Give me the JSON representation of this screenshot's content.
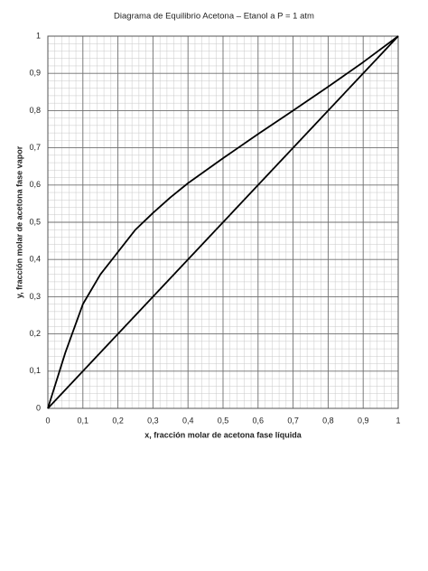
{
  "chart_data": {
    "type": "line",
    "title": "Diagrama de Equilibrio Acetona – Etanol a P = 1 atm",
    "x_label": "x, fracción molar de acetona fase líquida",
    "y_label": "y, fracción molar de acetona fase vapor",
    "xlim": [
      0,
      1
    ],
    "ylim": [
      0,
      1
    ],
    "xticks": [
      0,
      {
        "value": 0.1,
        "label": "0,1"
      },
      {
        "value": 0.2,
        "label": "0,2"
      },
      {
        "value": 0.3,
        "label": "0,3"
      },
      {
        "value": 0.4,
        "label": "0,4"
      },
      {
        "value": 0.5,
        "label": "0,5"
      },
      {
        "value": 0.6,
        "label": "0,6"
      },
      {
        "value": 0.7,
        "label": "0,7"
      },
      {
        "value": 0.8,
        "label": "0,8"
      },
      {
        "value": 0.9,
        "label": "0,9"
      },
      1
    ],
    "yticks": [
      0,
      {
        "value": 0.1,
        "label": "0,1"
      },
      {
        "value": 0.2,
        "label": "0,2"
      },
      {
        "value": 0.3,
        "label": "0,3"
      },
      {
        "value": 0.4,
        "label": "0,4"
      },
      {
        "value": 0.5,
        "label": "0,5"
      },
      {
        "value": 0.6,
        "label": "0,6"
      },
      {
        "value": 0.7,
        "label": "0,7"
      },
      {
        "value": 0.8,
        "label": "0,8"
      },
      {
        "value": 0.9,
        "label": "0,9"
      },
      1
    ],
    "grid": true,
    "series": [
      {
        "color": "#000000",
        "x": [
          0,
          0.05,
          0.1,
          0.15,
          0.2,
          0.25,
          0.3,
          0.35,
          0.4,
          0.5,
          0.6,
          0.7,
          0.8,
          0.9,
          1
        ],
        "values": [
          0,
          0.15,
          0.28,
          0.36,
          0.42,
          0.48,
          0.525,
          0.567,
          0.605,
          0.672,
          0.737,
          0.8,
          0.864,
          0.93,
          1
        ]
      },
      {
        "color": "#000000",
        "x": [
          0,
          1
        ],
        "values": [
          0,
          1
        ]
      }
    ]
  }
}
